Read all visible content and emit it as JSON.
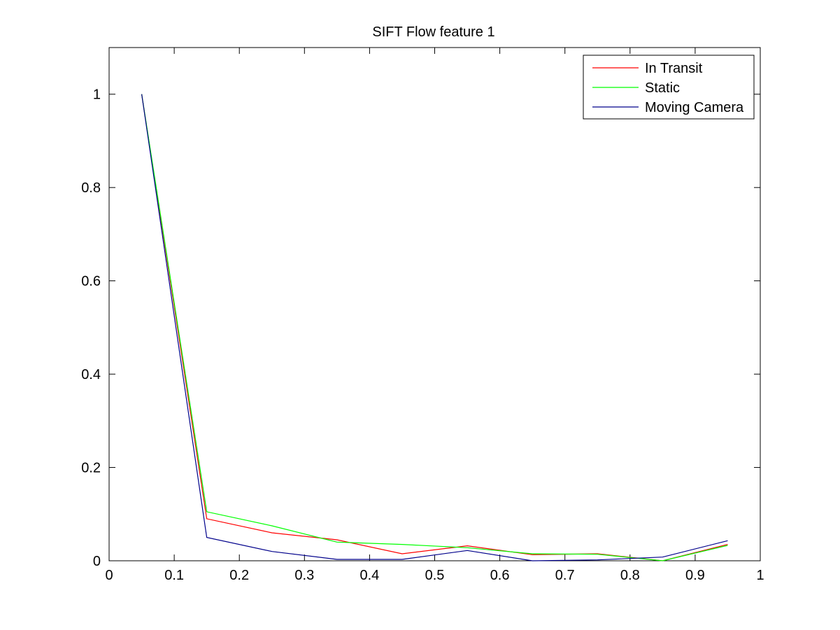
{
  "chart_data": {
    "type": "line",
    "title": "SIFT Flow feature 1",
    "xlabel": "",
    "ylabel": "",
    "xlim": [
      0,
      1
    ],
    "ylim": [
      0,
      1.1
    ],
    "x": [
      0.05,
      0.15,
      0.25,
      0.35,
      0.45,
      0.55,
      0.65,
      0.75,
      0.85,
      0.95
    ],
    "x_ticks": [
      "0",
      "0.1",
      "0.2",
      "0.3",
      "0.4",
      "0.5",
      "0.6",
      "0.7",
      "0.8",
      "0.9",
      "1"
    ],
    "y_ticks": [
      "0",
      "0.2",
      "0.4",
      "0.6",
      "0.8",
      "1"
    ],
    "grid": false,
    "legend_position": "top-right",
    "series": [
      {
        "name": "In Transit",
        "color": "#ff0000",
        "values": [
          1.0,
          0.09,
          0.06,
          0.045,
          0.015,
          0.032,
          0.013,
          0.015,
          0.0,
          0.035
        ]
      },
      {
        "name": "Static",
        "color": "#00ff00",
        "values": [
          1.0,
          0.105,
          0.075,
          0.04,
          0.035,
          0.028,
          0.015,
          0.014,
          0.0,
          0.033
        ]
      },
      {
        "name": "Moving Camera",
        "color": "#00008b",
        "values": [
          1.0,
          0.05,
          0.02,
          0.003,
          0.003,
          0.022,
          0.0,
          0.002,
          0.008,
          0.043
        ]
      }
    ]
  }
}
